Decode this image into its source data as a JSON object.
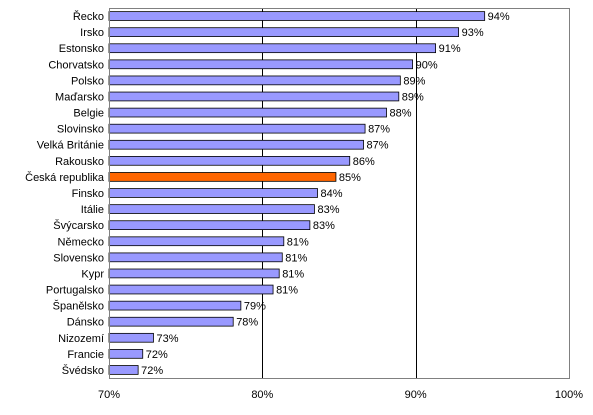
{
  "chart_data": {
    "type": "bar",
    "orientation": "horizontal",
    "categories": [
      "Řecko",
      "Irsko",
      "Estonsko",
      "Chorvatsko",
      "Polsko",
      "Maďarsko",
      "Belgie",
      "Slovinsko",
      "Velká Británie",
      "Rakousko",
      "Česká republika",
      "Finsko",
      "Itálie",
      "Švýcarsko",
      "Německo",
      "Slovensko",
      "Kypr",
      "Portugalsko",
      "Španělsko",
      "Dánsko",
      "Nizozemí",
      "Francie",
      "Švédsko"
    ],
    "values": [
      94.5,
      92.8,
      91.3,
      89.8,
      89.0,
      88.9,
      88.1,
      86.7,
      86.6,
      85.7,
      84.8,
      83.6,
      83.4,
      83.1,
      81.4,
      81.3,
      81.1,
      80.7,
      78.6,
      78.1,
      72.9,
      72.2,
      71.9
    ],
    "data_labels": [
      "94%",
      "93%",
      "91%",
      "90%",
      "89%",
      "89%",
      "88%",
      "87%",
      "87%",
      "86%",
      "85%",
      "84%",
      "83%",
      "83%",
      "81%",
      "81%",
      "81%",
      "81%",
      "79%",
      "78%",
      "73%",
      "72%",
      "72%"
    ],
    "highlight": "Česká republika",
    "xlim": [
      70,
      100
    ],
    "x_ticks": [
      70,
      80,
      90,
      100
    ],
    "x_tick_labels": [
      "70%",
      "80%",
      "90%",
      "100%"
    ],
    "grid": "vertical major lines",
    "colors": {
      "bar": "#9999ff",
      "highlight": "#ff6600",
      "bar_border": "#000000",
      "grid": "#000000"
    },
    "title": "",
    "xlabel": "",
    "ylabel": ""
  }
}
